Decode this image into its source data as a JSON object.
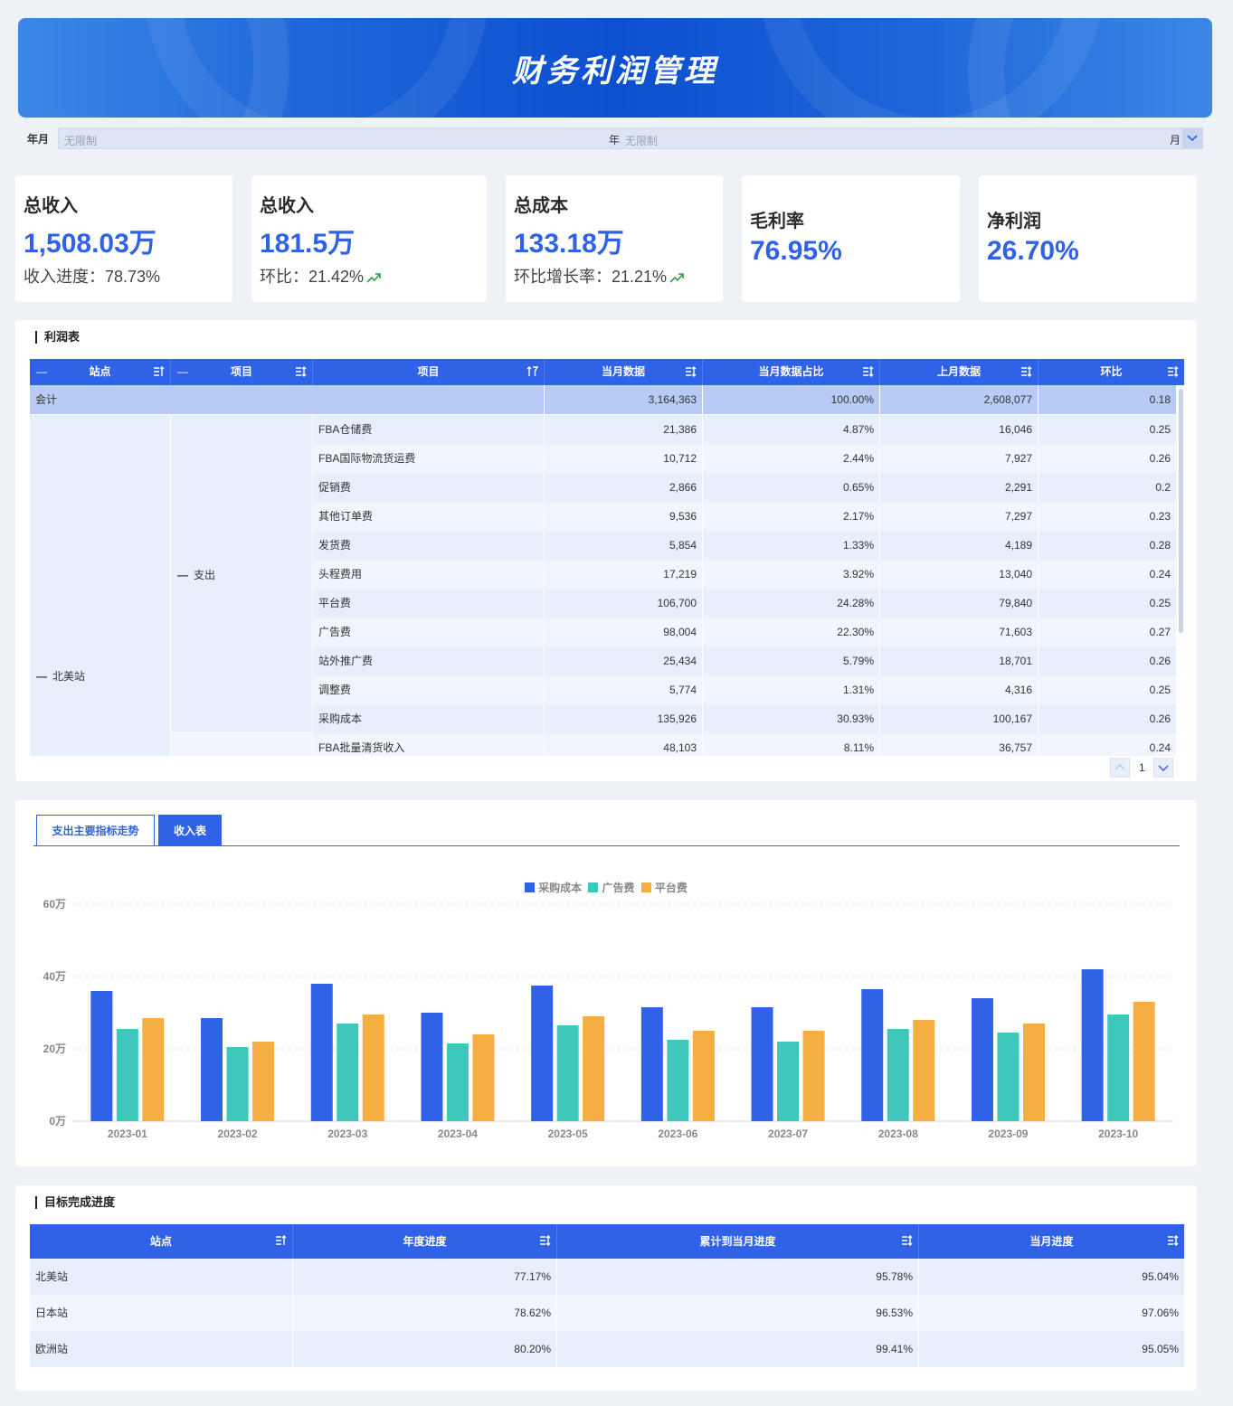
{
  "header": {
    "title": "财务利润管理"
  },
  "filter": {
    "label": "年月",
    "year_placeholder": "无限制",
    "year_unit": "年",
    "month_placeholder": "无限制",
    "month_unit": "月"
  },
  "kpis": [
    {
      "title": "总收入",
      "value": "1,508.03万",
      "sub": "收入进度：78.73%",
      "trend": ""
    },
    {
      "title": "总收入",
      "value": "181.5万",
      "sub": "环比：21.42%",
      "trend": "up"
    },
    {
      "title": "总成本",
      "value": "133.18万",
      "sub": "环比增长率：21.21%",
      "trend": "up"
    },
    {
      "title": "毛利率",
      "value": "76.95%",
      "sub": "",
      "trend": ""
    },
    {
      "title": "净利润",
      "value": "26.70%",
      "sub": "",
      "trend": ""
    }
  ],
  "profit_table": {
    "title": "利润表",
    "columns": [
      "站点",
      "项目",
      "项目",
      "当月数据",
      "当月数据占比",
      "上月数据",
      "环比"
    ],
    "total_row": {
      "label": "会计",
      "current": "3,164,363",
      "share": "100.00%",
      "previous": "2,608,077",
      "mom": "0.18"
    },
    "site": "北美站",
    "group": "支出",
    "rows": [
      {
        "item": "FBA仓储费",
        "current": "21,386",
        "share": "4.87%",
        "previous": "16,046",
        "mom": "0.25"
      },
      {
        "item": "FBA国际物流货运费",
        "current": "10,712",
        "share": "2.44%",
        "previous": "7,927",
        "mom": "0.26"
      },
      {
        "item": "促销费",
        "current": "2,866",
        "share": "0.65%",
        "previous": "2,291",
        "mom": "0.2"
      },
      {
        "item": "其他订单费",
        "current": "9,536",
        "share": "2.17%",
        "previous": "7,297",
        "mom": "0.23"
      },
      {
        "item": "发货费",
        "current": "5,854",
        "share": "1.33%",
        "previous": "4,189",
        "mom": "0.28"
      },
      {
        "item": "头程费用",
        "current": "17,219",
        "share": "3.92%",
        "previous": "13,040",
        "mom": "0.24"
      },
      {
        "item": "平台费",
        "current": "106,700",
        "share": "24.28%",
        "previous": "79,840",
        "mom": "0.25"
      },
      {
        "item": "广告费",
        "current": "98,004",
        "share": "22.30%",
        "previous": "71,603",
        "mom": "0.27"
      },
      {
        "item": "站外推广费",
        "current": "25,434",
        "share": "5.79%",
        "previous": "18,701",
        "mom": "0.26"
      },
      {
        "item": "调整费",
        "current": "5,774",
        "share": "1.31%",
        "previous": "4,316",
        "mom": "0.25"
      },
      {
        "item": "采购成本",
        "current": "135,926",
        "share": "30.93%",
        "previous": "100,167",
        "mom": "0.26"
      },
      {
        "item": "FBA批量清货收入",
        "current": "48,103",
        "share": "8.11%",
        "previous": "36,757",
        "mom": "0.24"
      }
    ],
    "page": "1"
  },
  "chart_panel": {
    "tabs": [
      {
        "label": "支出主要指标走势",
        "active": false
      },
      {
        "label": "收入表",
        "active": true
      }
    ]
  },
  "chart_data": {
    "type": "bar",
    "categories": [
      "2023-01",
      "2023-02",
      "2023-03",
      "2023-04",
      "2023-05",
      "2023-06",
      "2023-07",
      "2023-08",
      "2023-09",
      "2023-10"
    ],
    "series": [
      {
        "name": "采购成本",
        "color": "#2f62e6",
        "values": [
          36,
          28.5,
          38,
          30,
          37.5,
          31.5,
          31.5,
          36.5,
          34,
          42
        ]
      },
      {
        "name": "广告费",
        "color": "#3ec8bb",
        "values": [
          25.5,
          20.5,
          27,
          21.5,
          26.5,
          22.5,
          22,
          25.5,
          24.5,
          29.5
        ]
      },
      {
        "name": "平台费",
        "color": "#f4ae42",
        "values": [
          28.5,
          22,
          29.5,
          24,
          29,
          25,
          25,
          28,
          27,
          33
        ]
      }
    ],
    "yticks": [
      "0万",
      "20万",
      "40万",
      "60万"
    ],
    "ylim": [
      0,
      60
    ],
    "title": "",
    "xlabel": "",
    "ylabel": "",
    "legend": "top-center",
    "grid": true
  },
  "target_table": {
    "title": "目标完成进度",
    "columns": [
      "站点",
      "年度进度",
      "累计到当月进度",
      "当月进度"
    ],
    "rows": [
      {
        "site": "北美站",
        "annual": "77.17%",
        "cumulative": "95.78%",
        "monthly": "95.04%"
      },
      {
        "site": "日本站",
        "annual": "78.62%",
        "cumulative": "96.53%",
        "monthly": "97.06%"
      },
      {
        "site": "欧洲站",
        "annual": "80.20%",
        "cumulative": "99.41%",
        "monthly": "95.05%"
      }
    ]
  }
}
